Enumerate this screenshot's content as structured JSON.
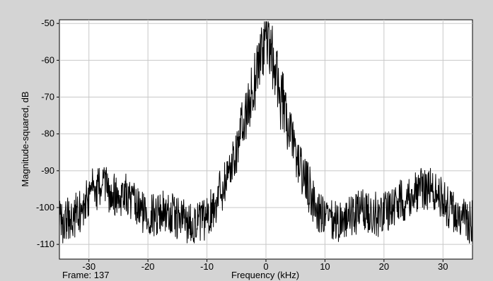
{
  "chart_data": {
    "type": "line",
    "title": "",
    "xlabel": "Frequency (kHz)",
    "ylabel": "Magnitude-squared, dB",
    "xlim": [
      -35,
      35
    ],
    "ylim": [
      -114,
      -49
    ],
    "xticks": [
      -30,
      -20,
      -10,
      0,
      10,
      20,
      30
    ],
    "yticks": [
      -50,
      -60,
      -70,
      -80,
      -90,
      -100,
      -110
    ],
    "grid": true,
    "frame_label": "Frame: 137",
    "colors": {
      "line": "#000000",
      "plot_bg": "#ffffff",
      "window_bg": "#d4d4d4",
      "grid": "#c8c8c8"
    },
    "series": [
      {
        "x": [
          -35,
          -33,
          -31,
          -30,
          -29,
          -28,
          -27,
          -26,
          -25,
          -24,
          -23,
          -22,
          -21,
          -20,
          -19,
          -18,
          -17,
          -16,
          -15,
          -14,
          -13,
          -12,
          -11,
          -10,
          -9,
          -8,
          -7,
          -6,
          -5,
          -4,
          -3,
          -2.5,
          -2,
          -1.5,
          -1,
          -0.5,
          0,
          0.5,
          1,
          1.5,
          2,
          2.5,
          3,
          4,
          5,
          6,
          7,
          8,
          9,
          10,
          11,
          12,
          13,
          14,
          15,
          16,
          17,
          18,
          19,
          20,
          21,
          22,
          23,
          24,
          25,
          26,
          27,
          28,
          29,
          30,
          31,
          32,
          33,
          35
        ],
        "y": [
          -104,
          -103,
          -100,
          -96,
          -95,
          -94.5,
          -95,
          -96,
          -97,
          -96,
          -98,
          -100,
          -101,
          -102,
          -102,
          -101,
          -101,
          -102,
          -103,
          -103,
          -104,
          -104,
          -104,
          -103,
          -100,
          -96,
          -93,
          -89,
          -84,
          -78,
          -73,
          -70,
          -66,
          -62,
          -59,
          -56,
          -53,
          -56,
          -59,
          -62,
          -66,
          -70,
          -73,
          -80,
          -85,
          -90,
          -94,
          -98,
          -101,
          -103,
          -104,
          -104,
          -103,
          -103,
          -102,
          -101,
          -101,
          -101,
          -102,
          -101,
          -100,
          -99,
          -98,
          -97,
          -96,
          -95,
          -94.5,
          -95,
          -96,
          -98,
          -100,
          -102,
          -103,
          -104
        ]
      }
    ]
  }
}
